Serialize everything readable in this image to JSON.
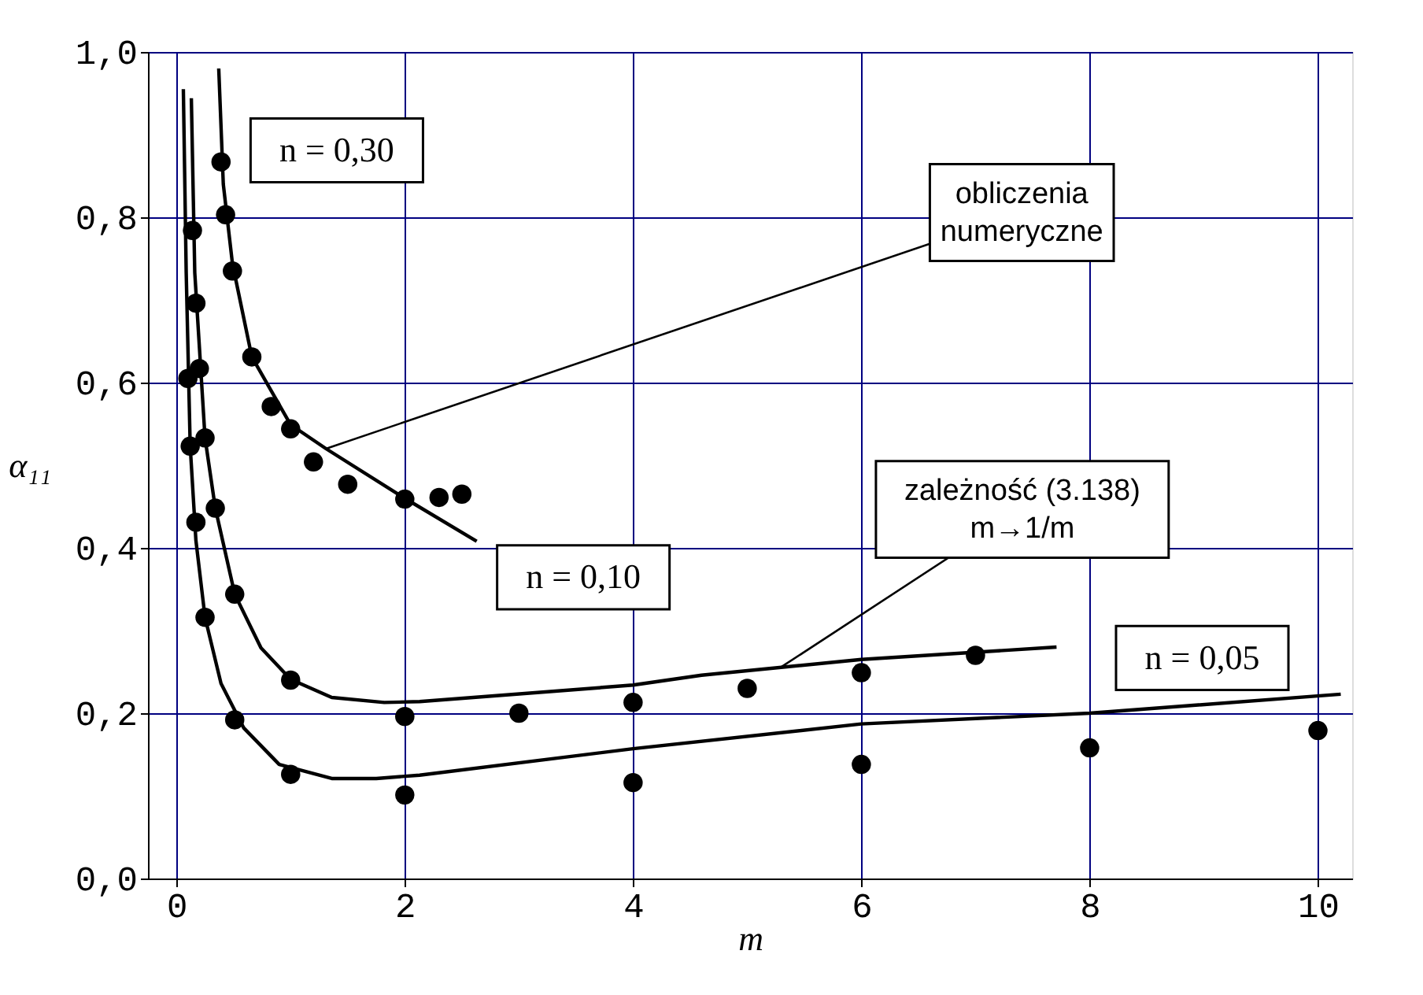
{
  "chart_data": {
    "type": "line",
    "xlabel": "m",
    "ylabel": "α₁₁",
    "xlim": [
      -0.25,
      10.3
    ],
    "ylim": [
      0,
      1
    ],
    "xticks": [
      0,
      2,
      4,
      6,
      8,
      10
    ],
    "yticks": [
      {
        "value": 0,
        "label": "0,0"
      },
      {
        "value": 0.2,
        "label": "0,2"
      },
      {
        "value": 0.4,
        "label": "0,4"
      },
      {
        "value": 0.6,
        "label": "0,6"
      },
      {
        "value": 0.8,
        "label": "0,8"
      },
      {
        "value": 1,
        "label": "1,0"
      }
    ],
    "grid": true,
    "legend": false,
    "line_style": "solid",
    "series": [
      {
        "name": "n = 0,30",
        "color": "#000000",
        "x": [
          0.37,
          0.41,
          0.49,
          0.66,
          1.0,
          1.31,
          2.0,
          2.63
        ],
        "values": [
          0.98,
          0.84,
          0.744,
          0.631,
          0.549,
          0.52,
          0.46,
          0.408
        ]
      },
      {
        "name": "n = 0,10",
        "color": "#000000",
        "x": [
          0.13,
          0.16,
          0.25,
          0.34,
          0.51,
          0.74,
          1.0,
          1.36,
          1.82,
          2.13,
          4.0,
          4.6,
          6.0,
          7.71
        ],
        "values": [
          0.944,
          0.733,
          0.533,
          0.448,
          0.344,
          0.279,
          0.241,
          0.219,
          0.213,
          0.214,
          0.234,
          0.246,
          0.265,
          0.28
        ]
      },
      {
        "name": "n = 0,05",
        "color": "#000000",
        "x": [
          0.06,
          0.085,
          0.12,
          0.17,
          0.25,
          0.39,
          0.59,
          0.9,
          1.36,
          1.75,
          2.13,
          4.0,
          6.0,
          8.0,
          10.2
        ],
        "values": [
          0.955,
          0.733,
          0.523,
          0.409,
          0.316,
          0.236,
          0.182,
          0.138,
          0.121,
          0.121,
          0.125,
          0.157,
          0.187,
          0.2,
          0.223
        ]
      },
      {
        "type": "scatter",
        "marker": "circle",
        "color": "#000000",
        "x": [
          0.39,
          0.43,
          0.49,
          0.66,
          0.83,
          1.0,
          1.2,
          1.5,
          2.0,
          2.3,
          2.5
        ],
        "values": [
          0.867,
          0.803,
          0.735,
          0.631,
          0.571,
          0.544,
          0.504,
          0.477,
          0.459,
          0.461,
          0.465
        ]
      },
      {
        "type": "scatter",
        "marker": "circle",
        "color": "#000000",
        "x": [
          0.14,
          0.17,
          0.2,
          0.25,
          0.34,
          0.51,
          1.0,
          2.0,
          3.0,
          4.0,
          5.0,
          6.0,
          7.0
        ],
        "values": [
          0.784,
          0.696,
          0.617,
          0.533,
          0.448,
          0.344,
          0.24,
          0.196,
          0.2,
          0.213,
          0.23,
          0.249,
          0.27
        ]
      },
      {
        "type": "scatter",
        "marker": "circle",
        "color": "#000000",
        "x": [
          0.1,
          0.12,
          0.17,
          0.25,
          0.51,
          1.0,
          2.0,
          4.0,
          6.0,
          8.0,
          10.0
        ],
        "values": [
          0.605,
          0.523,
          0.431,
          0.316,
          0.192,
          0.126,
          0.101,
          0.116,
          0.138,
          0.158,
          0.179
        ]
      }
    ],
    "annotations": [
      {
        "text": "obliczenia\nnumeryczne",
        "x": 1.31,
        "y": 0.52
      },
      {
        "text": "zależność (3.138)\nm→1/m",
        "x": 5.3,
        "y": 0.256
      }
    ]
  }
}
